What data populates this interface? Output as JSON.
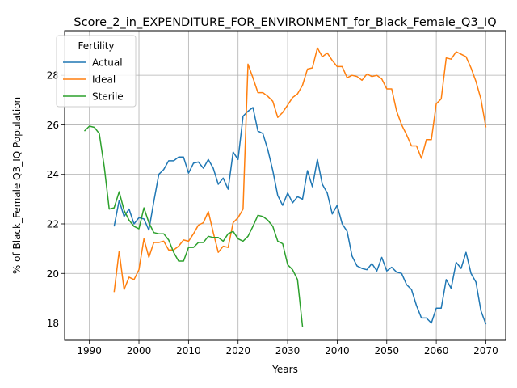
{
  "chart_data": {
    "type": "line",
    "title": "Score_2_in_EXPENDITURE_FOR_ENVIRONMENT_for_Black_Female_Q3_IQ",
    "xlabel": "Years",
    "ylabel": "% of Black_Female Q3_IQ Population",
    "xlim": [
      1985,
      2074
    ],
    "ylim": [
      17.3,
      29.8
    ],
    "xticks": [
      1990,
      2000,
      2010,
      2020,
      2030,
      2040,
      2050,
      2060,
      2070
    ],
    "yticks": [
      18,
      20,
      22,
      24,
      26,
      28
    ],
    "grid": true,
    "legend": {
      "title": "Fertility",
      "position": "top-left"
    },
    "series": [
      {
        "name": "Actual",
        "color": "#1f77b4",
        "x": [
          1995,
          1996,
          1997,
          1998,
          1999,
          2000,
          2001,
          2002,
          2003,
          2004,
          2005,
          2006,
          2007,
          2008,
          2009,
          2010,
          2011,
          2012,
          2013,
          2014,
          2015,
          2016,
          2017,
          2018,
          2019,
          2020,
          2021,
          2022,
          2023,
          2024,
          2025,
          2026,
          2027,
          2028,
          2029,
          2030,
          2031,
          2032,
          2033,
          2034,
          2035,
          2036,
          2037,
          2038,
          2039,
          2040,
          2041,
          2042,
          2043,
          2044,
          2045,
          2046,
          2047,
          2048,
          2049,
          2050,
          2051,
          2052,
          2053,
          2054,
          2055,
          2056,
          2057,
          2058,
          2059,
          2060,
          2061,
          2062,
          2063,
          2064,
          2065,
          2066,
          2067,
          2068,
          2069,
          2070
        ],
        "values": [
          21.9,
          22.95,
          22.3,
          22.6,
          22.0,
          22.25,
          22.2,
          21.75,
          22.9,
          24.0,
          24.2,
          24.55,
          24.55,
          24.7,
          24.7,
          24.05,
          24.45,
          24.5,
          24.25,
          24.6,
          24.25,
          23.6,
          23.85,
          23.4,
          24.9,
          24.6,
          26.35,
          26.55,
          26.7,
          25.75,
          25.65,
          25.0,
          24.15,
          23.15,
          22.75,
          23.25,
          22.85,
          23.1,
          23.0,
          24.15,
          23.5,
          24.6,
          23.6,
          23.25,
          22.4,
          22.75,
          22.0,
          21.7,
          20.7,
          20.3,
          20.2,
          20.15,
          20.4,
          20.1,
          20.65,
          20.1,
          20.25,
          20.05,
          20.0,
          19.55,
          19.35,
          18.7,
          18.2,
          18.2,
          18.0,
          18.6,
          18.6,
          19.75,
          19.4,
          20.45,
          20.2,
          20.85,
          20.0,
          19.65,
          18.5,
          17.95
        ]
      },
      {
        "name": "Ideal",
        "color": "#ff7f0e",
        "x": [
          1995,
          1996,
          1997,
          1998,
          1999,
          2000,
          2001,
          2002,
          2003,
          2004,
          2005,
          2006,
          2007,
          2008,
          2009,
          2010,
          2011,
          2012,
          2013,
          2014,
          2015,
          2016,
          2017,
          2018,
          2019,
          2020,
          2021,
          2022,
          2023,
          2024,
          2025,
          2026,
          2027,
          2028,
          2029,
          2030,
          2031,
          2032,
          2033,
          2034,
          2035,
          2036,
          2037,
          2038,
          2039,
          2040,
          2041,
          2042,
          2043,
          2044,
          2045,
          2046,
          2047,
          2048,
          2049,
          2050,
          2051,
          2052,
          2053,
          2054,
          2055,
          2056,
          2057,
          2058,
          2059,
          2060,
          2061,
          2062,
          2063,
          2064,
          2065,
          2066,
          2067,
          2068,
          2069,
          2070
        ],
        "values": [
          19.25,
          20.9,
          19.35,
          19.85,
          19.75,
          20.15,
          21.4,
          20.65,
          21.25,
          21.25,
          21.3,
          20.95,
          20.95,
          21.1,
          21.35,
          21.3,
          21.6,
          21.95,
          22.05,
          22.5,
          21.65,
          20.85,
          21.1,
          21.05,
          22.05,
          22.25,
          22.6,
          28.45,
          27.9,
          27.3,
          27.3,
          27.15,
          26.95,
          26.3,
          26.5,
          26.8,
          27.1,
          27.25,
          27.6,
          28.25,
          28.3,
          29.1,
          28.75,
          28.9,
          28.6,
          28.35,
          28.35,
          27.9,
          28.0,
          27.95,
          27.8,
          28.05,
          27.95,
          28.0,
          27.85,
          27.45,
          27.45,
          26.55,
          26.0,
          25.6,
          25.15,
          25.15,
          24.65,
          25.4,
          25.4,
          26.85,
          27.05,
          28.7,
          28.65,
          28.95,
          28.85,
          28.75,
          28.3,
          27.75,
          27.05,
          25.9
        ]
      },
      {
        "name": "Sterile",
        "color": "#2ca02c",
        "x": [
          1989,
          1990,
          1991,
          1992,
          1993,
          1994,
          1995,
          1996,
          1997,
          1998,
          1999,
          2000,
          2001,
          2002,
          2003,
          2004,
          2005,
          2006,
          2007,
          2008,
          2009,
          2010,
          2011,
          2012,
          2013,
          2014,
          2015,
          2016,
          2017,
          2018,
          2019,
          2020,
          2021,
          2022,
          2023,
          2024,
          2025,
          2026,
          2027,
          2028,
          2029,
          2030,
          2031,
          2032,
          2033
        ],
        "values": [
          25.75,
          25.95,
          25.9,
          25.65,
          24.3,
          22.6,
          22.65,
          23.3,
          22.55,
          22.15,
          21.9,
          21.8,
          22.65,
          22.05,
          21.65,
          21.6,
          21.6,
          21.35,
          20.85,
          20.5,
          20.5,
          21.05,
          21.05,
          21.25,
          21.25,
          21.5,
          21.45,
          21.45,
          21.3,
          21.6,
          21.7,
          21.4,
          21.3,
          21.5,
          21.9,
          22.35,
          22.3,
          22.15,
          21.9,
          21.3,
          21.2,
          20.35,
          20.15,
          19.75,
          17.85
        ]
      }
    ]
  }
}
